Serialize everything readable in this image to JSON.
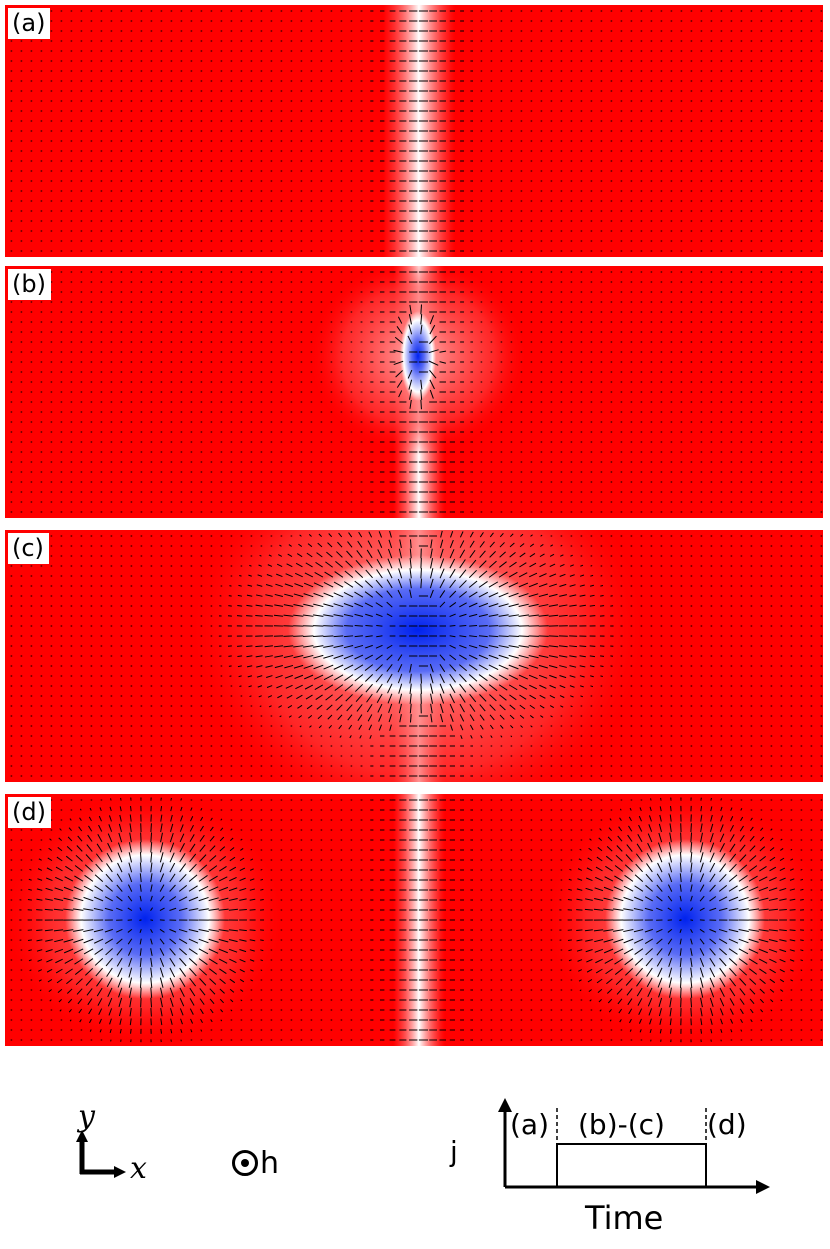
{
  "panels": [
    {
      "label": "(a)",
      "state": "domain-wall"
    },
    {
      "label": "(b)",
      "state": "nucleation"
    },
    {
      "label": "(c)",
      "state": "skyrmion-pair"
    },
    {
      "label": "(d)",
      "state": "separated-skyrmions"
    }
  ],
  "colors": {
    "background": "#ff0000",
    "wall": "#ffffff",
    "core": "#0022ee",
    "arrow": "#000000"
  },
  "legend": {
    "y_axis": "y",
    "x_axis": "x",
    "field": "h",
    "current_label": "j",
    "time_label": "Time",
    "phase_a": "(a)",
    "phase_bc": "(b)-(c)",
    "phase_d": "(d)"
  }
}
